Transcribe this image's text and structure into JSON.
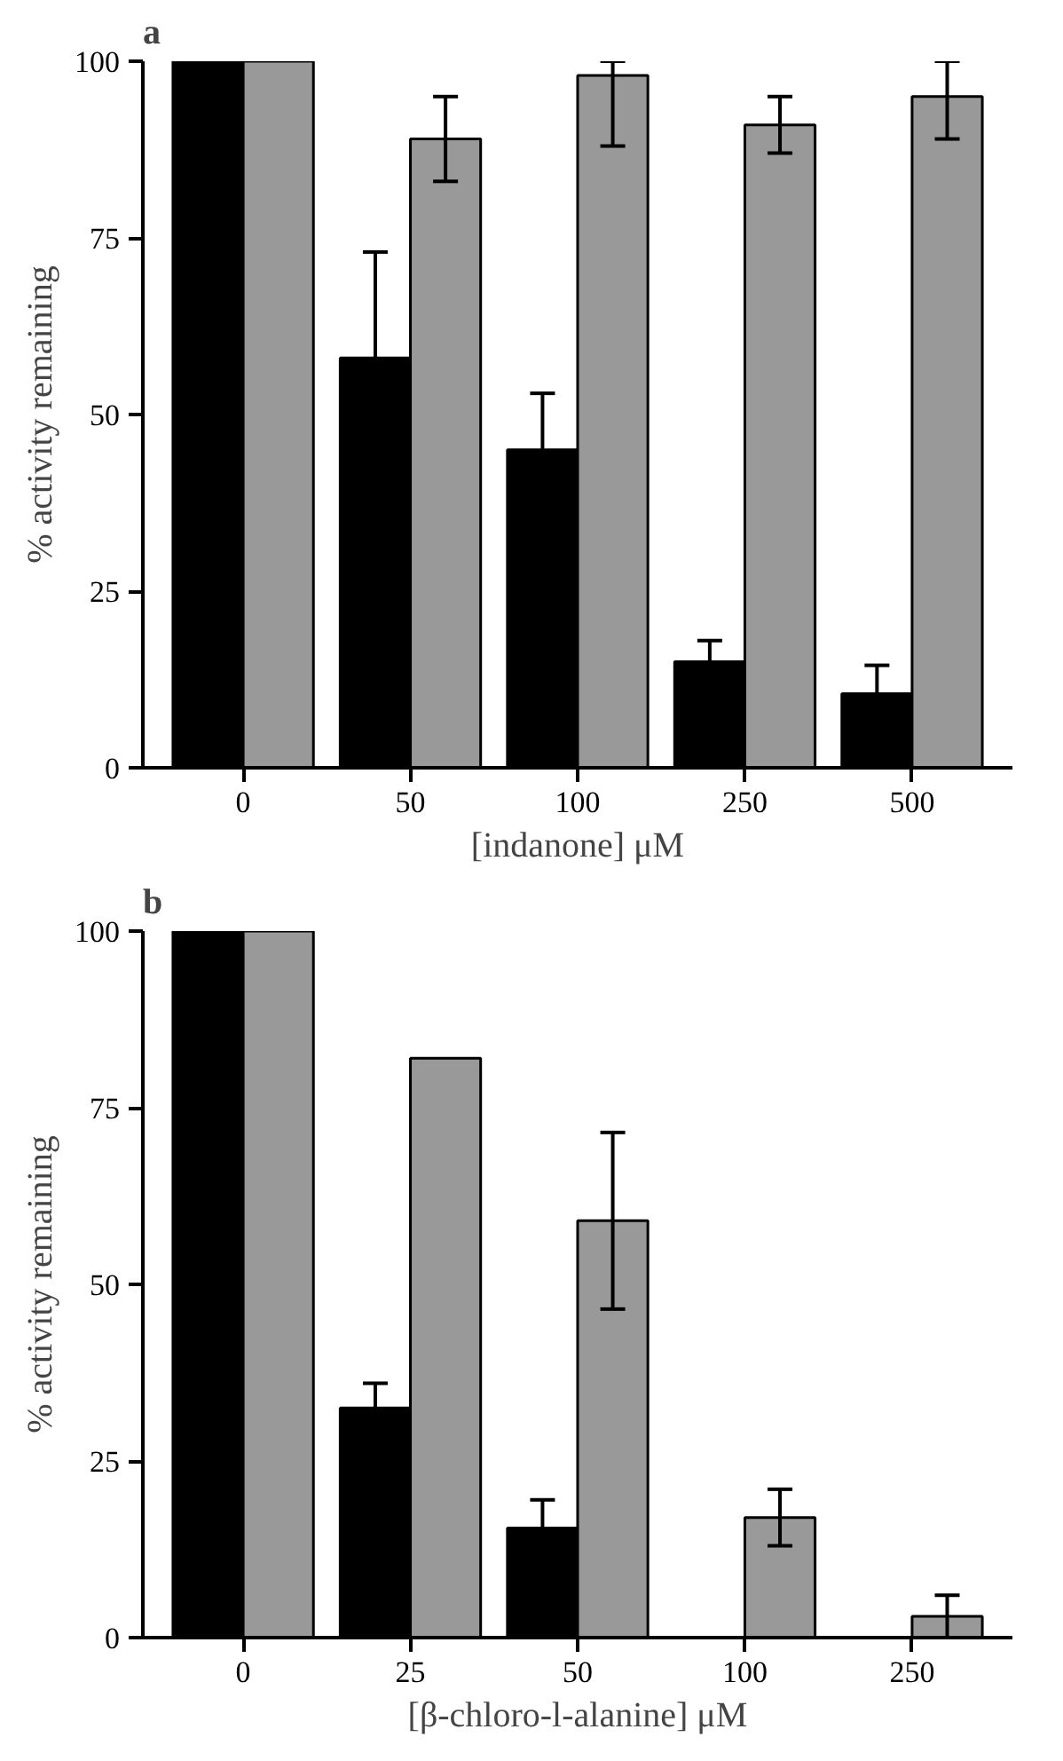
{
  "chart_data": [
    {
      "type": "bar",
      "title": "a",
      "xlabel": "[indanone] μM",
      "ylabel": "% activity remaining",
      "categories": [
        "0",
        "50",
        "100",
        "250",
        "500"
      ],
      "ylim": [
        0,
        100
      ],
      "yticks": [
        0,
        25,
        50,
        75,
        100
      ],
      "grid": false,
      "series": [
        {
          "color": "#000000",
          "values": [
            100,
            58,
            45,
            15,
            10.5
          ],
          "errors": [
            null,
            15,
            8,
            3,
            4
          ]
        },
        {
          "color": "#999999",
          "values": [
            100,
            89,
            98,
            91,
            95
          ],
          "errors": [
            null,
            6,
            [
              88,
              100
            ],
            4,
            [
              89,
              100
            ]
          ]
        }
      ]
    },
    {
      "type": "bar",
      "title": "b",
      "xlabel": "[β-chloro-l-alanine] μM",
      "ylabel": "% activity remaining",
      "categories": [
        "0",
        "25",
        "50",
        "100",
        "250"
      ],
      "ylim": [
        0,
        100
      ],
      "yticks": [
        0,
        25,
        50,
        75,
        100
      ],
      "grid": false,
      "series": [
        {
          "color": "#000000",
          "values": [
            100,
            32.5,
            15.5,
            0,
            0
          ],
          "errors": [
            null,
            3.5,
            4,
            null,
            null
          ]
        },
        {
          "color": "#999999",
          "values": [
            100,
            82,
            59,
            17,
            3
          ],
          "errors": [
            null,
            null,
            12.5,
            4,
            3
          ]
        }
      ]
    }
  ]
}
